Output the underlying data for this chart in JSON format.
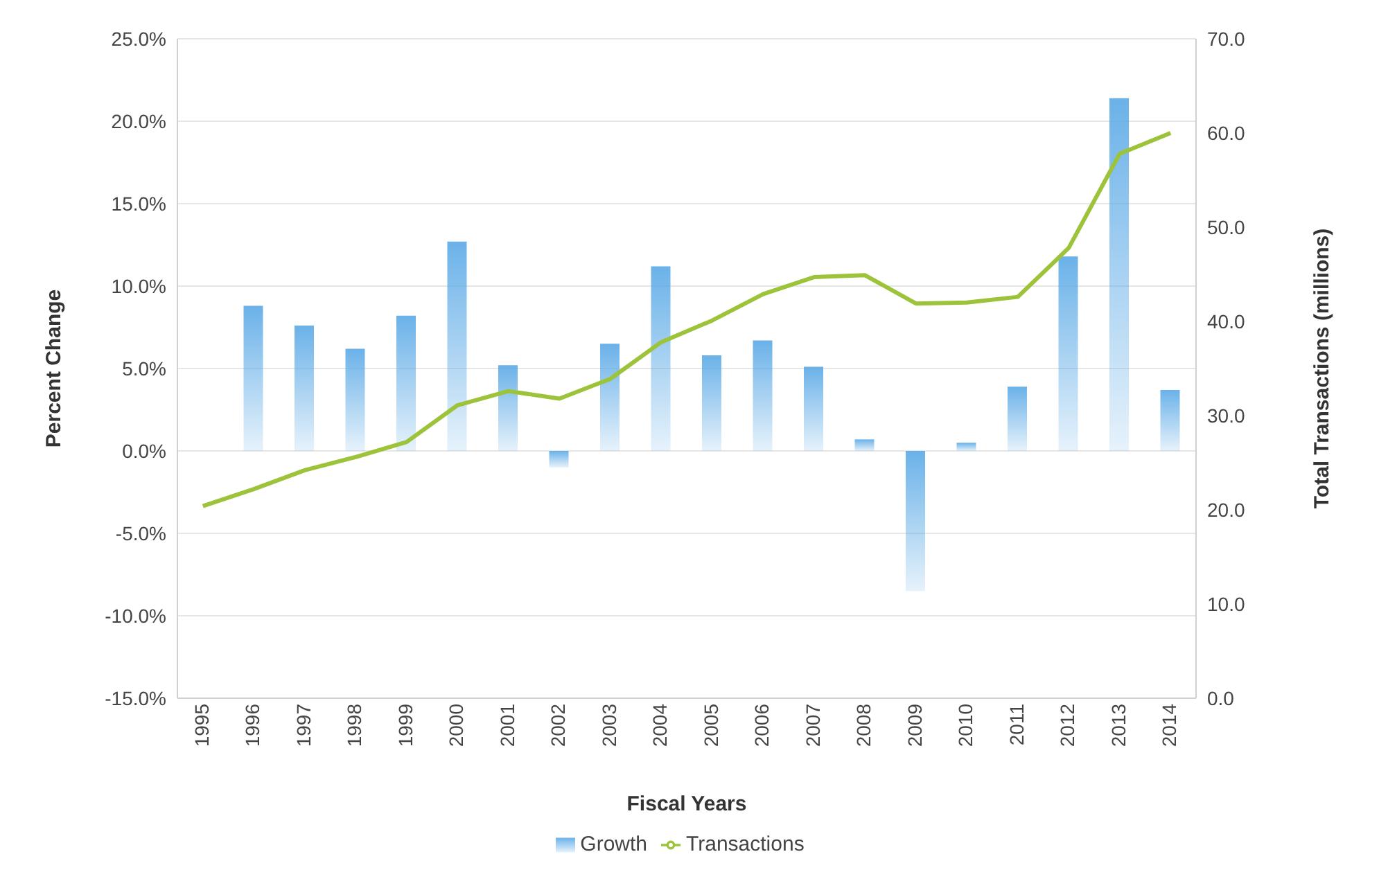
{
  "chart_data": {
    "type": "bar",
    "xlabel": "Fiscal Years",
    "ylabel": "Percent Change",
    "y2label": "Total Transactions (millions)",
    "categories": [
      "1995",
      "1996",
      "1997",
      "1998",
      "1999",
      "2000",
      "2001",
      "2002",
      "2003",
      "2004",
      "2005",
      "2006",
      "2007",
      "2008",
      "2009",
      "2010",
      "2011",
      "2012",
      "2013",
      "2014"
    ],
    "series": [
      {
        "name": "Growth",
        "color": "#5aa9e6",
        "values": [
          null,
          8.8,
          7.6,
          6.2,
          8.2,
          12.7,
          5.2,
          -1.0,
          6.5,
          11.2,
          5.8,
          6.7,
          5.1,
          0.7,
          -8.5,
          0.5,
          3.9,
          11.8,
          21.4,
          3.7
        ]
      },
      {
        "name": "Transactions",
        "type": "line",
        "axis": "y2",
        "color": "#9dc33b",
        "values": [
          20.4,
          22.2,
          24.2,
          25.6,
          27.2,
          31.1,
          32.6,
          31.8,
          33.9,
          37.8,
          40.1,
          42.9,
          44.7,
          44.9,
          41.9,
          42.0,
          42.6,
          47.8,
          57.8,
          60.0
        ]
      }
    ],
    "ylim": [
      -15,
      25
    ],
    "yticks": [
      {
        "value": -15,
        "label": "-15.0%"
      },
      {
        "value": -10,
        "label": "-10.0%"
      },
      {
        "value": -5,
        "label": "-5.0%"
      },
      {
        "value": 0,
        "label": "0.0%"
      },
      {
        "value": 5,
        "label": "5.0%"
      },
      {
        "value": 10,
        "label": "10.0%"
      },
      {
        "value": 15,
        "label": "15.0%"
      },
      {
        "value": 20,
        "label": "20.0%"
      },
      {
        "value": 25,
        "label": "25.0%"
      }
    ],
    "y2lim": [
      0,
      70
    ],
    "y2ticks": [
      {
        "value": 0,
        "label": "0.0"
      },
      {
        "value": 10,
        "label": "10.0"
      },
      {
        "value": 20,
        "label": "20.0"
      },
      {
        "value": 30,
        "label": "30.0"
      },
      {
        "value": 40,
        "label": "40.0"
      },
      {
        "value": 50,
        "label": "50.0"
      },
      {
        "value": 60,
        "label": "60.0"
      },
      {
        "value": 70,
        "label": "70.0"
      }
    ],
    "grid": "y",
    "legend": "bottom",
    "marker": "none"
  }
}
